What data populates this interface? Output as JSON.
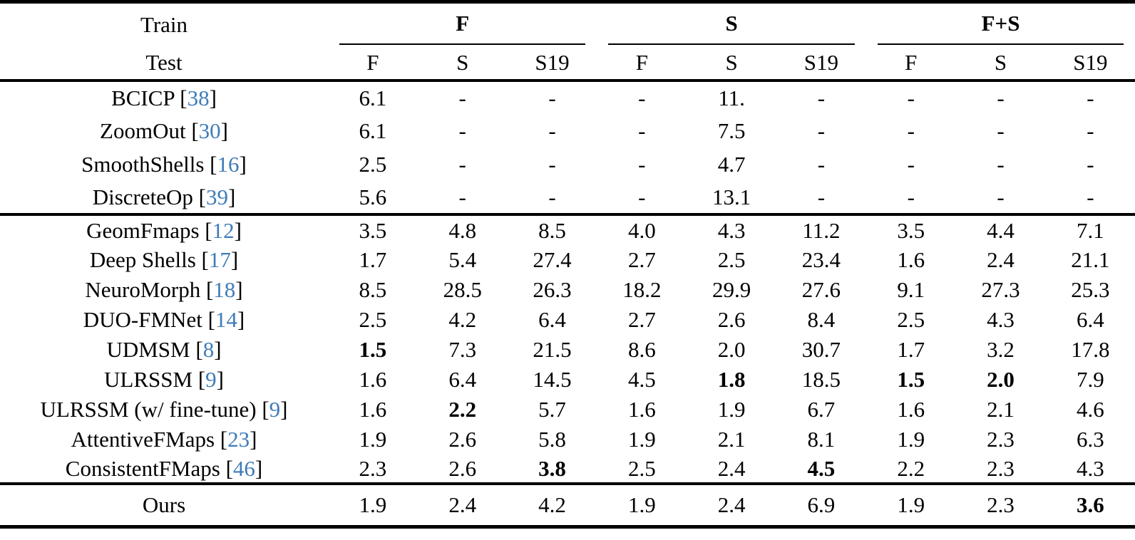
{
  "page": {
    "background": "#ffffff",
    "text_color": "#000000",
    "citation_color": "#3e7cb8"
  },
  "table": {
    "header": {
      "train_label": "Train",
      "test_label": "Test",
      "groups": [
        {
          "label": "F",
          "subcols": [
            "F",
            "S",
            "S19"
          ]
        },
        {
          "label": "S",
          "subcols": [
            "F",
            "S",
            "S19"
          ]
        },
        {
          "label": "F+S",
          "subcols": [
            "F",
            "S",
            "S19"
          ]
        }
      ]
    },
    "blocks": [
      {
        "name": "axiomatic-methods",
        "rows": [
          {
            "method": "BCICP",
            "ref": "38",
            "values": [
              "6.1",
              "-",
              "-",
              "-",
              "11.",
              "-",
              "-",
              "-",
              "-"
            ],
            "bold": []
          },
          {
            "method": "ZoomOut",
            "ref": "30",
            "values": [
              "6.1",
              "-",
              "-",
              "-",
              "7.5",
              "-",
              "-",
              "-",
              "-"
            ],
            "bold": []
          },
          {
            "method": "SmoothShells",
            "ref": "16",
            "values": [
              "2.5",
              "-",
              "-",
              "-",
              "4.7",
              "-",
              "-",
              "-",
              "-"
            ],
            "bold": []
          },
          {
            "method": "DiscreteOp",
            "ref": "39",
            "values": [
              "5.6",
              "-",
              "-",
              "-",
              "13.1",
              "-",
              "-",
              "-",
              "-"
            ],
            "bold": []
          }
        ]
      },
      {
        "name": "learning-methods",
        "rows": [
          {
            "method": "GeomFmaps",
            "ref": "12",
            "values": [
              "3.5",
              "4.8",
              "8.5",
              "4.0",
              "4.3",
              "11.2",
              "3.5",
              "4.4",
              "7.1"
            ],
            "bold": []
          },
          {
            "method": "Deep Shells",
            "ref": "17",
            "values": [
              "1.7",
              "5.4",
              "27.4",
              "2.7",
              "2.5",
              "23.4",
              "1.6",
              "2.4",
              "21.1"
            ],
            "bold": []
          },
          {
            "method": "NeuroMorph",
            "ref": "18",
            "values": [
              "8.5",
              "28.5",
              "26.3",
              "18.2",
              "29.9",
              "27.6",
              "9.1",
              "27.3",
              "25.3"
            ],
            "bold": []
          },
          {
            "method": "DUO-FMNet",
            "ref": "14",
            "values": [
              "2.5",
              "4.2",
              "6.4",
              "2.7",
              "2.6",
              "8.4",
              "2.5",
              "4.3",
              "6.4"
            ],
            "bold": []
          },
          {
            "method": "UDMSM",
            "ref": "8",
            "values": [
              "1.5",
              "7.3",
              "21.5",
              "8.6",
              "2.0",
              "30.7",
              "1.7",
              "3.2",
              "17.8"
            ],
            "bold": [
              0
            ]
          },
          {
            "method": "ULRSSM",
            "ref": "9",
            "values": [
              "1.6",
              "6.4",
              "14.5",
              "4.5",
              "1.8",
              "18.5",
              "1.5",
              "2.0",
              "7.9"
            ],
            "bold": [
              4,
              6,
              7
            ]
          },
          {
            "method": "ULRSSM (w/ fine-tune)",
            "ref": "9",
            "values": [
              "1.6",
              "2.2",
              "5.7",
              "1.6",
              "1.9",
              "6.7",
              "1.6",
              "2.1",
              "4.6"
            ],
            "bold": [
              1
            ]
          },
          {
            "method": "AttentiveFMaps",
            "ref": "23",
            "values": [
              "1.9",
              "2.6",
              "5.8",
              "1.9",
              "2.1",
              "8.1",
              "1.9",
              "2.3",
              "6.3"
            ],
            "bold": []
          },
          {
            "method": "ConsistentFMaps",
            "ref": "46",
            "values": [
              "2.3",
              "2.6",
              "3.8",
              "2.5",
              "2.4",
              "4.5",
              "2.2",
              "2.3",
              "4.3"
            ],
            "bold": [
              2,
              5
            ]
          }
        ]
      },
      {
        "name": "ours",
        "rows": [
          {
            "method": "Ours",
            "ref": null,
            "values": [
              "1.9",
              "2.4",
              "4.2",
              "1.9",
              "2.4",
              "6.9",
              "1.9",
              "2.3",
              "3.6"
            ],
            "bold": [
              8
            ]
          }
        ]
      }
    ]
  }
}
